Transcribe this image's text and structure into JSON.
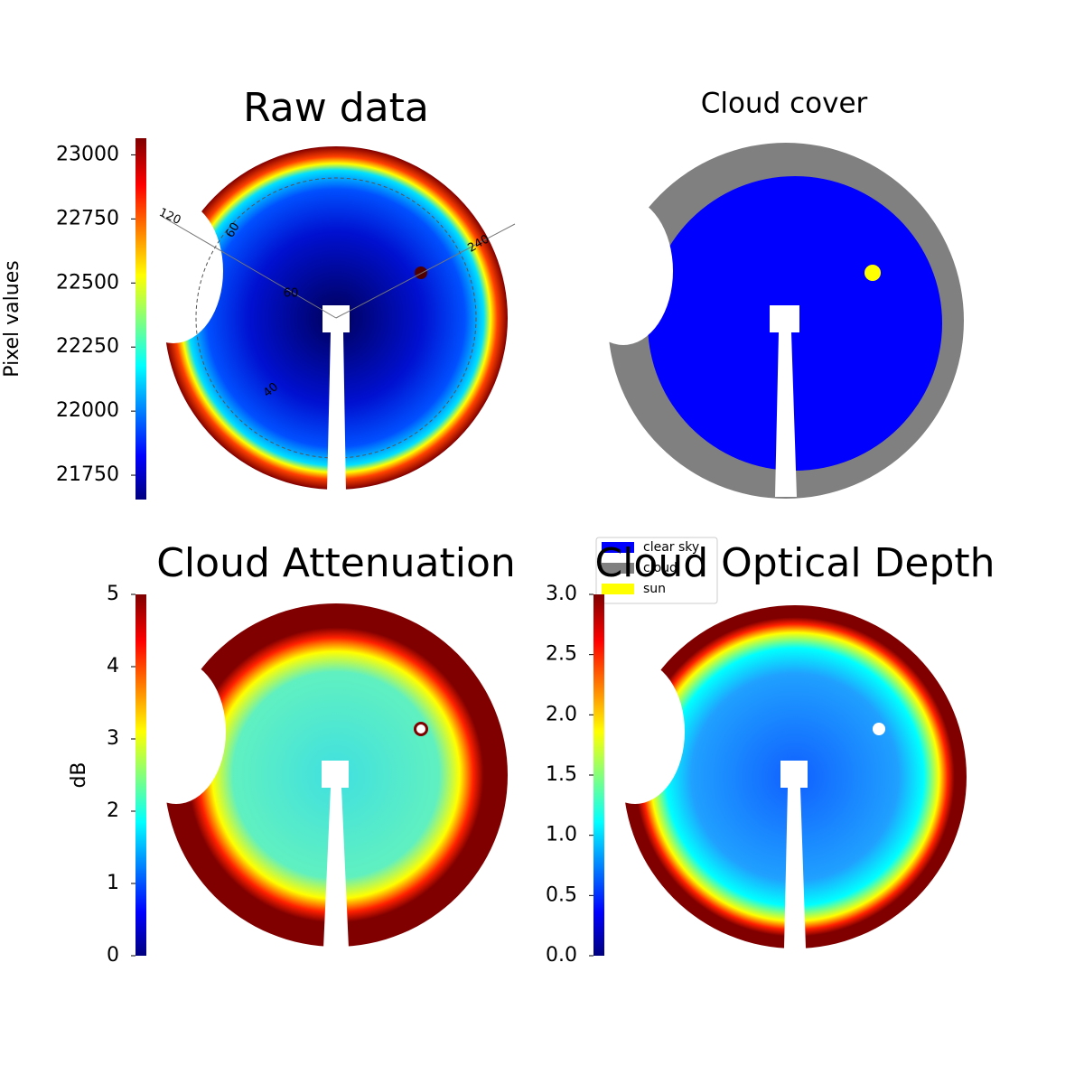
{
  "chart_data": [
    {
      "type": "heatmap",
      "title": "Raw data",
      "colorbar_label": "Pixel values",
      "ylim": [
        21655,
        23065
      ],
      "yticks": [
        21750,
        22000,
        22250,
        22500,
        22750,
        23000
      ],
      "annotations": [
        "120",
        "60",
        "240",
        "60",
        "40"
      ]
    },
    {
      "type": "image",
      "title": "Cloud cover",
      "legend": [
        {
          "name": "clear sky",
          "color": "#0000ff"
        },
        {
          "name": "cloud",
          "color": "#808080"
        },
        {
          "name": "sun",
          "color": "#ffff00"
        }
      ]
    },
    {
      "type": "heatmap",
      "title": "Cloud Attenuation",
      "colorbar_label": "dB",
      "ylim": [
        0,
        5
      ],
      "yticks": [
        0,
        1,
        2,
        3,
        4,
        5
      ]
    },
    {
      "type": "heatmap",
      "title": "Cloud Optical Depth",
      "ylim": [
        0,
        3
      ],
      "yticks": [
        {
          "value": 0,
          "label": "0.0"
        },
        0.5,
        {
          "value": 1,
          "label": "1.0"
        },
        1.5,
        {
          "value": 2,
          "label": "2.0"
        },
        2.5,
        {
          "value": 3,
          "label": "3.0"
        }
      ]
    }
  ]
}
